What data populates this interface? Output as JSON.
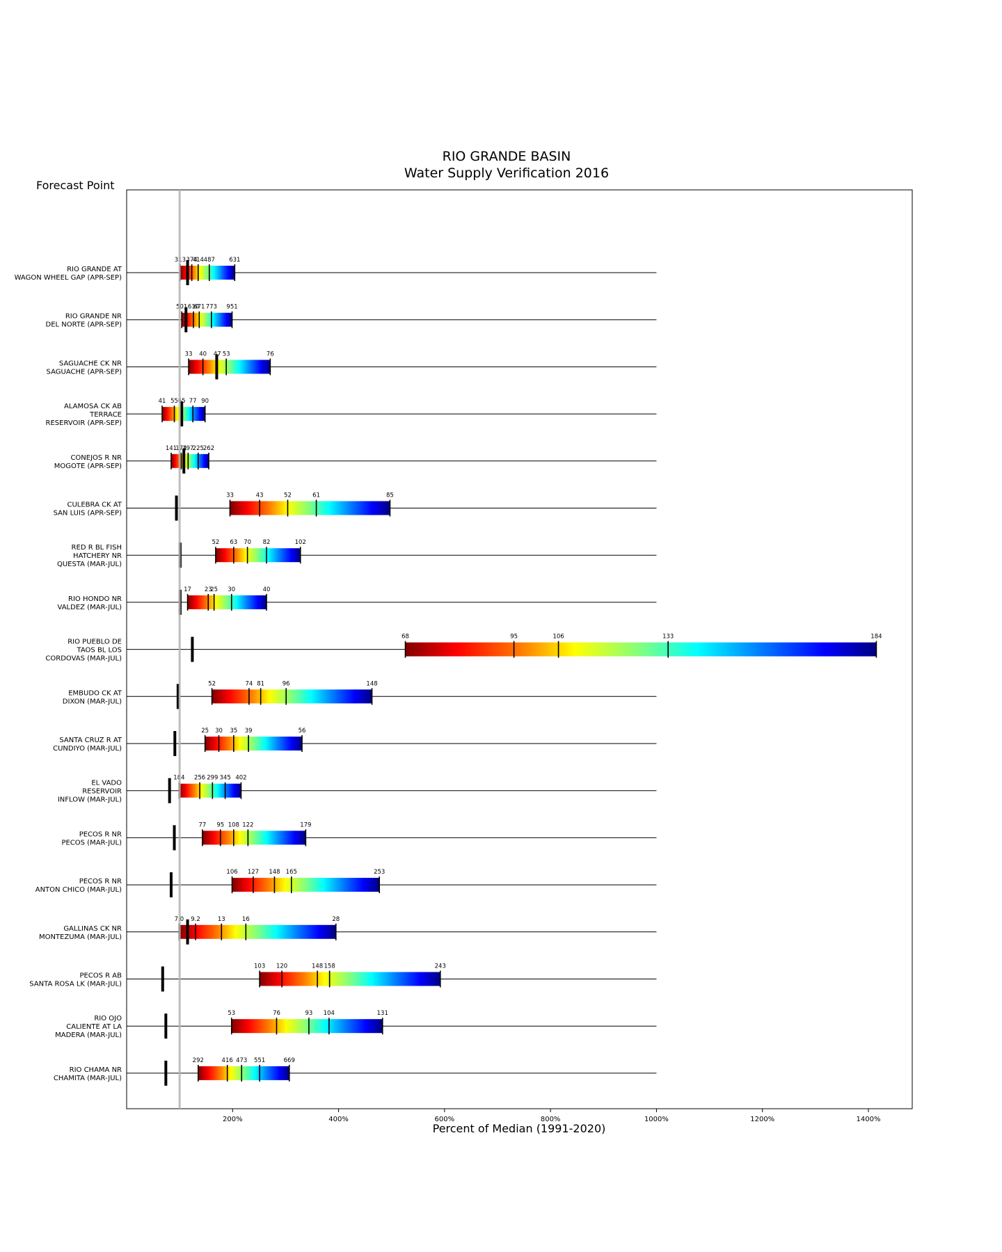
{
  "chart_data": {
    "type": "bar",
    "title": "RIO GRANDE BASIN",
    "subtitle": "Water Supply Verification 2016",
    "y_header": "Forecast Point",
    "xlabel": "Percent of Median (1991-2020)",
    "x_ticks": [
      "200%",
      "400%",
      "600%",
      "800%",
      "1000%",
      "1200%",
      "1400%"
    ],
    "x_tick_values": [
      200,
      400,
      600,
      800,
      1000,
      1200,
      1400
    ],
    "xlim": [
      0,
      1480
    ],
    "median_line": 100,
    "grid": false,
    "rows": [
      {
        "label": [
          "RIO GRANDE AT",
          "WAGON WHEEL GAP (APR-SEP)"
        ],
        "pct": [
          101,
          123,
          135,
          156,
          204
        ],
        "values": [
          "313",
          "374",
          "414",
          "487",
          "631"
        ],
        "observed": 115
      },
      {
        "label": [
          "RIO GRANDE NR",
          "DEL NORTE (APR-SEP)"
        ],
        "pct": [
          104,
          126,
          137,
          160,
          199
        ],
        "values": [
          "501",
          "610",
          "671",
          "773",
          "951"
        ],
        "observed": 112
      },
      {
        "label": [
          "SAGUACHE CK NR",
          "SAGUACHE (APR-SEP)"
        ],
        "pct": [
          117,
          144,
          171,
          188,
          271
        ],
        "values": [
          "33",
          "40",
          "47",
          "53",
          "76"
        ],
        "observed": 170
      },
      {
        "label": [
          "ALAMOSA CK AB",
          "TERRACE",
          "RESERVOIR (APR-SEP)"
        ],
        "pct": [
          67,
          90,
          104,
          125,
          148
        ],
        "values": [
          "41",
          "55",
          "65",
          "77",
          "90"
        ],
        "observed": 104
      },
      {
        "label": [
          "CONEJOS R NR",
          "MOGOTE (APR-SEP)"
        ],
        "pct": [
          84,
          103,
          116,
          135,
          155
        ],
        "values": [
          "141",
          "174",
          "197",
          "225",
          "262"
        ],
        "observed": 108
      },
      {
        "label": [
          "CULEBRA CK AT",
          "SAN LUIS (APR-SEP)"
        ],
        "pct": [
          195,
          251,
          304,
          358,
          497
        ],
        "values": [
          "33",
          "43",
          "52",
          "61",
          "85"
        ],
        "observed": 94
      },
      {
        "label": [
          "RED R BL FISH",
          "HATCHERY NR",
          "QUESTA (MAR-JUL)"
        ],
        "pct": [
          168,
          202,
          228,
          264,
          328
        ],
        "values": [
          "52",
          "63",
          "70",
          "82",
          "102"
        ],
        "observed": 101
      },
      {
        "label": [
          "RIO HONDO NR",
          "VALDEZ (MAR-JUL)"
        ],
        "pct": [
          115,
          154,
          165,
          198,
          264
        ],
        "values": [
          "17",
          "23",
          "25",
          "30",
          "40"
        ],
        "observed": 101
      },
      {
        "label": [
          "RIO PUEBLO DE",
          "TAOS BL LOS",
          "CORDOVAS (MAR-JUL)"
        ],
        "pct": [
          526,
          731,
          815,
          1022,
          1415
        ],
        "values": [
          "68",
          "95",
          "106",
          "133",
          "184"
        ],
        "observed": 124
      },
      {
        "label": [
          "EMBUDO CK AT",
          "DIXON (MAR-JUL)"
        ],
        "pct": [
          161,
          231,
          253,
          301,
          463
        ],
        "values": [
          "52",
          "74",
          "81",
          "96",
          "148"
        ],
        "observed": 97
      },
      {
        "label": [
          "SANTA CRUZ R AT",
          "CUNDIYO (MAR-JUL)"
        ],
        "pct": [
          148,
          174,
          202,
          230,
          331
        ],
        "values": [
          "25",
          "30",
          "35",
          "39",
          "56"
        ],
        "observed": 91
      },
      {
        "label": [
          "EL VADO",
          "RESERVOIR",
          "INFLOW (MAR-JUL)"
        ],
        "pct": [
          99,
          138,
          162,
          186,
          216
        ],
        "values": [
          "184",
          "256",
          "299",
          "345",
          "402"
        ],
        "observed": 81
      },
      {
        "label": [
          "PECOS R NR",
          "PECOS (MAR-JUL)"
        ],
        "pct": [
          143,
          177,
          202,
          229,
          338
        ],
        "values": [
          "77",
          "95",
          "108",
          "122",
          "179"
        ],
        "observed": 90
      },
      {
        "label": [
          "PECOS R NR",
          "ANTON CHICO (MAR-JUL)"
        ],
        "pct": [
          199,
          239,
          279,
          311,
          477
        ],
        "values": [
          "106",
          "127",
          "148",
          "165",
          "253"
        ],
        "observed": 84
      },
      {
        "label": [
          "GALLINAS CK NR",
          "MONTEZUMA (MAR-JUL)"
        ],
        "pct": [
          99,
          130,
          179,
          225,
          395
        ],
        "values": [
          "7.0",
          "9.2",
          "13",
          "16",
          "28"
        ],
        "observed": 115
      },
      {
        "label": [
          "PECOS R AB",
          "SANTA ROSA LK (MAR-JUL)"
        ],
        "pct": [
          251,
          293,
          360,
          383,
          592
        ],
        "values": [
          "103",
          "120",
          "148",
          "158",
          "243"
        ],
        "observed": 68
      },
      {
        "label": [
          "RIO OJO",
          "CALIENTE AT LA",
          "MADERA (MAR-JUL)"
        ],
        "pct": [
          198,
          283,
          344,
          382,
          483
        ],
        "values": [
          "53",
          "76",
          "93",
          "104",
          "131"
        ],
        "observed": 74
      },
      {
        "label": [
          "RIO CHAMA NR",
          "CHAMITA (MAR-JUL)"
        ],
        "pct": [
          135,
          190,
          217,
          251,
          307
        ],
        "values": [
          "292",
          "416",
          "473",
          "551",
          "669"
        ],
        "observed": 74
      }
    ]
  }
}
